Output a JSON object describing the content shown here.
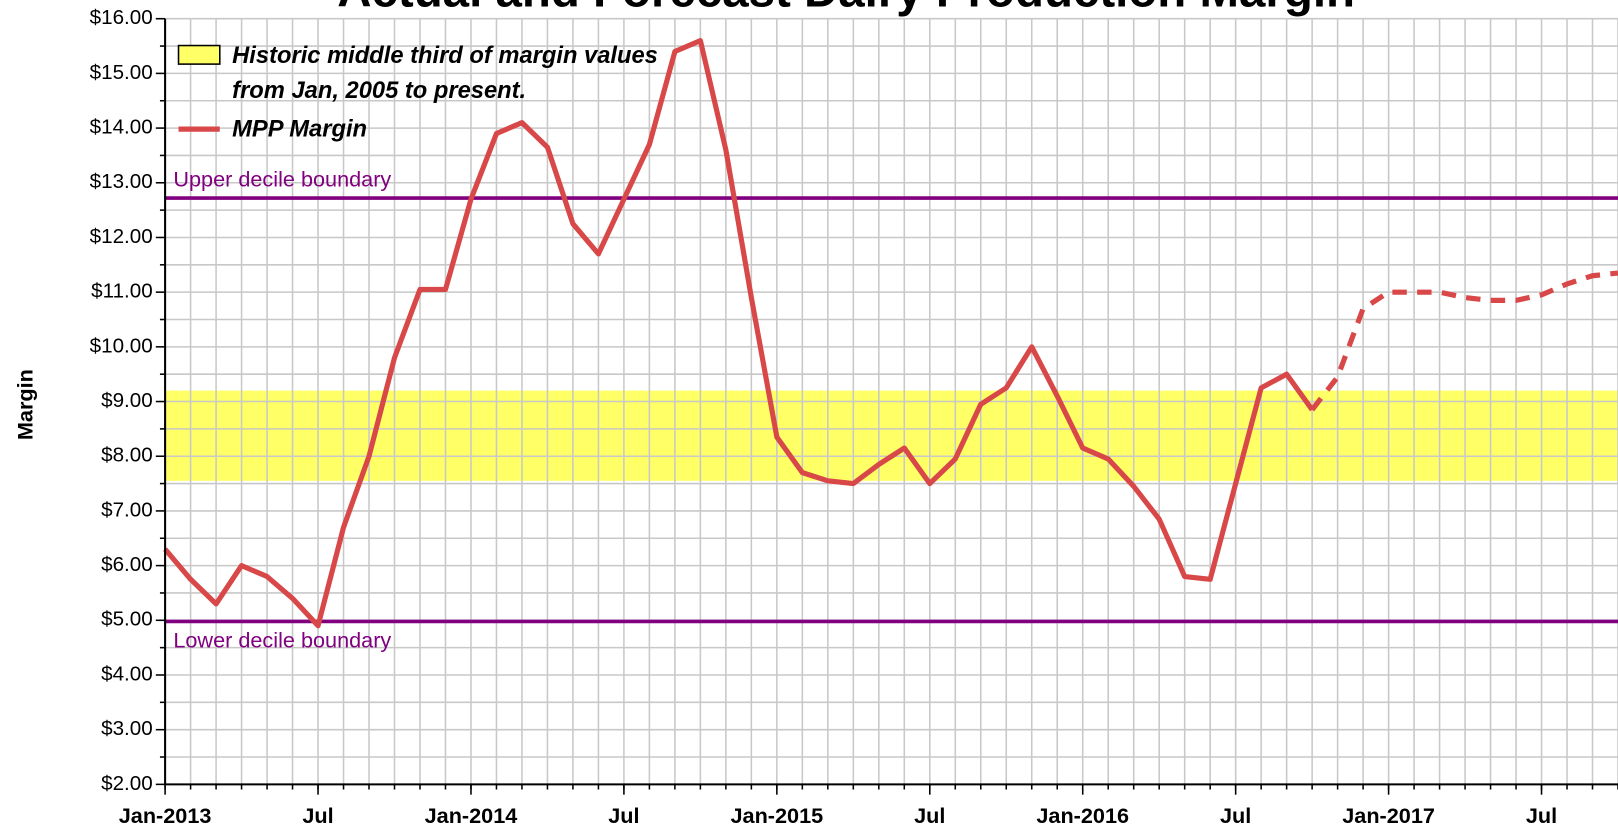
{
  "chart_data": {
    "type": "line",
    "title": "Actual and Forecast Dairy Production Margin",
    "y_label": "Margin",
    "x": [
      "2013-01",
      "2013-02",
      "2013-03",
      "2013-04",
      "2013-05",
      "2013-06",
      "2013-07",
      "2013-08",
      "2013-09",
      "2013-10",
      "2013-11",
      "2013-12",
      "2014-01",
      "2014-02",
      "2014-03",
      "2014-04",
      "2014-05",
      "2014-06",
      "2014-07",
      "2014-08",
      "2014-09",
      "2014-10",
      "2014-11",
      "2014-12",
      "2015-01",
      "2015-02",
      "2015-03",
      "2015-04",
      "2015-05",
      "2015-06",
      "2015-07",
      "2015-08",
      "2015-09",
      "2015-10",
      "2015-11",
      "2015-12",
      "2016-01",
      "2016-02",
      "2016-03",
      "2016-04",
      "2016-05",
      "2016-06",
      "2016-07",
      "2016-08",
      "2016-09",
      "2016-10",
      "2016-11",
      "2016-12",
      "2017-01",
      "2017-02",
      "2017-03",
      "2017-04",
      "2017-05",
      "2017-06",
      "2017-07",
      "2017-08",
      "2017-09",
      "2017-10"
    ],
    "xlim": [
      "2013-01",
      "2017-10"
    ],
    "xticks": [
      {
        "value": "2013-01",
        "label": "Jan-2013"
      },
      {
        "value": "2013-07",
        "label": "Jul"
      },
      {
        "value": "2014-01",
        "label": "Jan-2014"
      },
      {
        "value": "2014-07",
        "label": "Jul"
      },
      {
        "value": "2015-01",
        "label": "Jan-2015"
      },
      {
        "value": "2015-07",
        "label": "Jul"
      },
      {
        "value": "2016-01",
        "label": "Jan-2016"
      },
      {
        "value": "2016-07",
        "label": "Jul"
      },
      {
        "value": "2017-01",
        "label": "Jan-2017"
      },
      {
        "value": "2017-07",
        "label": "Jul"
      }
    ],
    "ylim": [
      2,
      16
    ],
    "yticks": [
      {
        "value": 2,
        "label": "$2.00"
      },
      {
        "value": 3,
        "label": "$3.00"
      },
      {
        "value": 4,
        "label": "$4.00"
      },
      {
        "value": 5,
        "label": "$5.00"
      },
      {
        "value": 6,
        "label": "$6.00"
      },
      {
        "value": 7,
        "label": "$7.00"
      },
      {
        "value": 8,
        "label": "$8.00"
      },
      {
        "value": 9,
        "label": "$9.00"
      },
      {
        "value": 10,
        "label": "$10.00"
      },
      {
        "value": 11,
        "label": "$11.00"
      },
      {
        "value": 12,
        "label": "$12.00"
      },
      {
        "value": 13,
        "label": "$13.00"
      },
      {
        "value": 14,
        "label": "$14.00"
      },
      {
        "value": 15,
        "label": "$15.00"
      },
      {
        "value": 16,
        "label": "$16.00"
      }
    ],
    "grid": true,
    "band": {
      "low": 7.55,
      "high": 9.2,
      "color": "#ffff66",
      "legend_lines": [
        "Historic middle third of margin values",
        "from Jan, 2005 to present."
      ]
    },
    "reference_lines": [
      {
        "value": 12.72,
        "label": "Upper decile boundary",
        "color": "#800080"
      },
      {
        "value": 4.98,
        "label": "Lower decile boundary",
        "color": "#800080"
      }
    ],
    "series": [
      {
        "name": "MPP Margin",
        "color": "#d84848",
        "dashed": false,
        "values": [
          6.3,
          5.75,
          5.3,
          6.0,
          5.8,
          5.4,
          4.9,
          6.7,
          8.0,
          9.8,
          11.05,
          11.05,
          12.7,
          13.9,
          14.1,
          13.65,
          12.25,
          11.7,
          12.7,
          13.7,
          15.4,
          15.6,
          13.6,
          10.9,
          8.35,
          7.7,
          7.55,
          7.5,
          7.85,
          8.15,
          7.5,
          7.95,
          8.95,
          9.25,
          10.0,
          9.1,
          8.15,
          7.95,
          7.45,
          6.85,
          5.8,
          5.75,
          7.5,
          9.25,
          9.5,
          8.85,
          null,
          null,
          null,
          null,
          null,
          null,
          null,
          null,
          null,
          null,
          null,
          null
        ]
      },
      {
        "color": "#d84848",
        "dashed": true,
        "values": [
          null,
          null,
          null,
          null,
          null,
          null,
          null,
          null,
          null,
          null,
          null,
          null,
          null,
          null,
          null,
          null,
          null,
          null,
          null,
          null,
          null,
          null,
          null,
          null,
          null,
          null,
          null,
          null,
          null,
          null,
          null,
          null,
          null,
          null,
          null,
          null,
          null,
          null,
          null,
          null,
          null,
          null,
          null,
          null,
          null,
          8.85,
          9.45,
          10.7,
          11.0,
          11.0,
          11.0,
          10.9,
          10.85,
          10.85,
          10.95,
          11.15,
          11.3,
          11.35
        ]
      }
    ],
    "legend_corner": "top-left"
  }
}
